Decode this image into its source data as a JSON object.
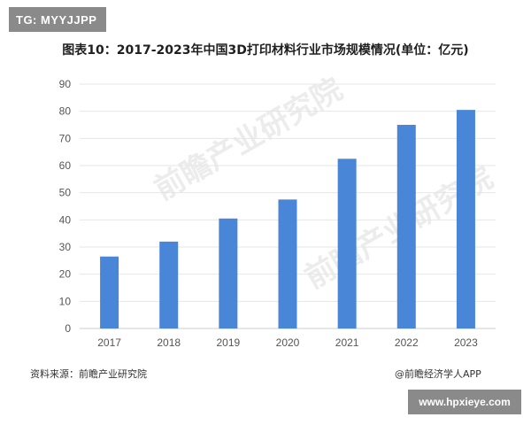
{
  "tag": "TG: MYYJJPP",
  "footer": {
    "source": "资料来源：前瞻产业研究院",
    "credit": "@前瞻经济学人APP",
    "url": "www.hpxieye.com"
  },
  "watermark": {
    "text": "前瞻产业研究院"
  },
  "colors": {
    "bar": "#4a86d8",
    "grid": "#e6e6e6",
    "axis": "#cccccc",
    "badge_bg": "#8a8a8a"
  },
  "chart_data": {
    "type": "bar",
    "title": "图表10：2017-2023年中国3D打印材料行业市场规模情况(单位：亿元)",
    "categories": [
      "2017",
      "2018",
      "2019",
      "2020",
      "2021",
      "2022",
      "2023"
    ],
    "values": [
      26.5,
      32,
      40.5,
      47.5,
      62.5,
      75,
      80.5
    ],
    "xlabel": "",
    "ylabel": "",
    "ylim": [
      0,
      90
    ],
    "yticks": [
      0,
      10,
      20,
      30,
      40,
      50,
      60,
      70,
      80,
      90
    ],
    "grid": true,
    "legend": "none"
  }
}
